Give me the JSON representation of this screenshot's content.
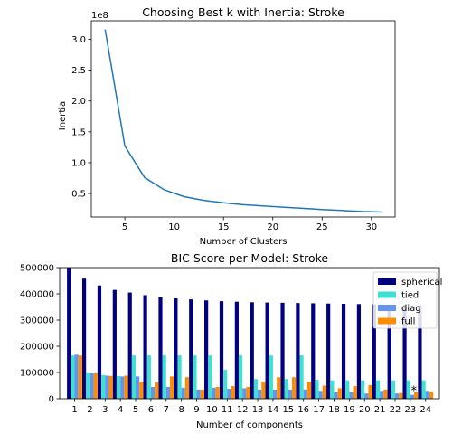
{
  "chart_data": [
    {
      "type": "line",
      "title": "Choosing Best k with Inertia: Stroke",
      "xlabel": "Number of Clusters",
      "ylabel": "Inertia",
      "y_offset_label": "1e8",
      "xlim": [
        1.6,
        32.4
      ],
      "ylim": [
        0.12,
        3.3
      ],
      "x_ticks": [
        5,
        10,
        15,
        20,
        25,
        30
      ],
      "y_ticks": [
        0.5,
        1.0,
        1.5,
        2.0,
        2.5,
        3.0
      ],
      "y_tick_labels": [
        "0.5",
        "1.0",
        "1.5",
        "2.0",
        "2.5",
        "3.0"
      ],
      "line_color": "#1f77b4",
      "grid": false,
      "series": [
        {
          "x": [
            3,
            5,
            7,
            9,
            11,
            13,
            15,
            17,
            19,
            21,
            23,
            25,
            27,
            29,
            31
          ],
          "y": [
            3.16,
            1.27,
            0.76,
            0.56,
            0.45,
            0.39,
            0.35,
            0.32,
            0.3,
            0.28,
            0.26,
            0.24,
            0.225,
            0.21,
            0.2
          ]
        }
      ]
    },
    {
      "type": "bar",
      "title": "BIC Score per Model: Stroke",
      "xlabel": "Number of components",
      "ylabel": "",
      "ylim": [
        0,
        500000
      ],
      "y_ticks": [
        0,
        100000,
        200000,
        300000,
        400000,
        500000
      ],
      "y_tick_labels": [
        "0",
        "100000",
        "200000",
        "300000",
        "400000",
        "500000"
      ],
      "categories": [
        "1",
        "2",
        "3",
        "4",
        "5",
        "6",
        "7",
        "8",
        "9",
        "10",
        "11",
        "12",
        "13",
        "14",
        "15",
        "16",
        "17",
        "18",
        "19",
        "20",
        "21",
        "22",
        "23",
        "24"
      ],
      "legend_position": "top-right",
      "grid": false,
      "best_marker": {
        "label": "*",
        "component": 23
      },
      "series": [
        {
          "name": "spherical",
          "color": "#000080",
          "values": [
            500000,
            458000,
            432000,
            415000,
            405000,
            395000,
            388000,
            383000,
            379000,
            375000,
            372000,
            370000,
            368000,
            367000,
            366000,
            365000,
            364000,
            363000,
            362000,
            361000,
            360000,
            359000,
            358000,
            357000
          ]
        },
        {
          "name": "tied",
          "color": "#40e0d0",
          "values": [
            165000,
            100000,
            90000,
            86000,
            165000,
            165000,
            165000,
            165000,
            165000,
            165000,
            110000,
            165000,
            75000,
            165000,
            75000,
            165000,
            72000,
            70000,
            70000,
            70000,
            70000,
            70000,
            70000,
            70000
          ]
        },
        {
          "name": "diag",
          "color": "#6495ed",
          "values": [
            168000,
            99000,
            88000,
            85000,
            85000,
            45000,
            45000,
            42000,
            35000,
            42000,
            38000,
            40000,
            35000,
            35000,
            35000,
            35000,
            30000,
            25000,
            25000,
            20000,
            30000,
            20000,
            15000,
            30000
          ]
        },
        {
          "name": "full",
          "color": "#ff8c00",
          "values": [
            165000,
            97000,
            87000,
            88000,
            65000,
            62000,
            85000,
            82000,
            35000,
            45000,
            48000,
            45000,
            65000,
            82000,
            82000,
            65000,
            50000,
            40000,
            48000,
            52000,
            35000,
            22000,
            25000,
            28000
          ]
        }
      ]
    }
  ]
}
